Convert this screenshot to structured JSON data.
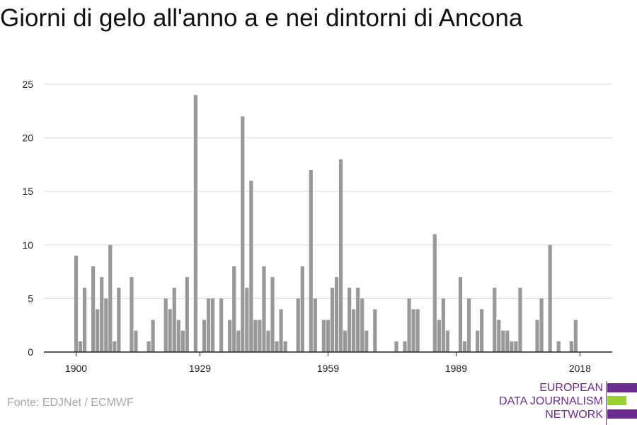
{
  "title": "Giorni di gelo all'anno a e nei dintorni di Ancona",
  "source": "Fonte: EDJNet / ECMWF",
  "logo": {
    "line1": "EUROPEAN",
    "line2": "DATA JOURNALISM",
    "line3": "NETWORK",
    "colors": {
      "purple": "#6a2c91",
      "green": "#9bd12d"
    }
  },
  "colors": {
    "bar": "#999999",
    "grid": "#dddddd",
    "axis": "#222222"
  },
  "chart_data": {
    "type": "bar",
    "title": "Giorni di gelo all'anno a e nei dintorni di Ancona",
    "xlabel": "",
    "ylabel": "",
    "ylim": [
      0,
      25
    ],
    "yticks": [
      0,
      5,
      10,
      15,
      20,
      25
    ],
    "xticks": [
      1900,
      1929,
      1959,
      1989,
      2018
    ],
    "grid": true,
    "categories": [
      1900,
      1901,
      1902,
      1903,
      1904,
      1905,
      1906,
      1907,
      1908,
      1909,
      1910,
      1911,
      1912,
      1913,
      1914,
      1915,
      1916,
      1917,
      1918,
      1919,
      1920,
      1921,
      1922,
      1923,
      1924,
      1925,
      1926,
      1927,
      1928,
      1929,
      1930,
      1931,
      1932,
      1933,
      1934,
      1935,
      1936,
      1937,
      1938,
      1939,
      1940,
      1941,
      1942,
      1943,
      1944,
      1945,
      1946,
      1947,
      1948,
      1949,
      1950,
      1951,
      1952,
      1953,
      1954,
      1955,
      1956,
      1957,
      1958,
      1959,
      1960,
      1961,
      1962,
      1963,
      1964,
      1965,
      1966,
      1967,
      1968,
      1969,
      1970,
      1971,
      1972,
      1973,
      1974,
      1975,
      1976,
      1977,
      1978,
      1979,
      1980,
      1981,
      1982,
      1983,
      1984,
      1985,
      1986,
      1987,
      1988,
      1989,
      1990,
      1991,
      1992,
      1993,
      1994,
      1995,
      1996,
      1997,
      1998,
      1999,
      2000,
      2001,
      2002,
      2003,
      2004,
      2005,
      2006,
      2007,
      2008,
      2009,
      2010,
      2011,
      2012,
      2013,
      2014,
      2015,
      2016,
      2017,
      2018,
      2019,
      2020,
      2021
    ],
    "values": [
      9,
      1,
      6,
      0,
      8,
      4,
      7,
      5,
      10,
      1,
      6,
      0,
      0,
      7,
      2,
      0,
      0,
      1,
      3,
      0,
      0,
      5,
      4,
      6,
      3,
      2,
      7,
      0,
      24,
      0,
      3,
      5,
      5,
      0,
      5,
      0,
      3,
      8,
      2,
      22,
      6,
      16,
      3,
      3,
      8,
      2,
      7,
      1,
      4,
      1,
      0,
      0,
      5,
      8,
      0,
      17,
      5,
      0,
      3,
      3,
      6,
      7,
      18,
      2,
      6,
      4,
      6,
      5,
      2,
      0,
      4,
      0,
      0,
      0,
      0,
      1,
      0,
      1,
      5,
      4,
      4,
      0,
      0,
      0,
      11,
      3,
      5,
      2,
      0,
      0,
      7,
      1,
      5,
      0,
      2,
      4,
      0,
      0,
      6,
      3,
      2,
      2,
      1,
      1,
      6,
      0,
      0,
      0,
      3,
      5,
      0,
      10,
      0,
      1,
      0,
      0,
      1,
      3,
      0,
      0,
      0,
      0
    ]
  }
}
